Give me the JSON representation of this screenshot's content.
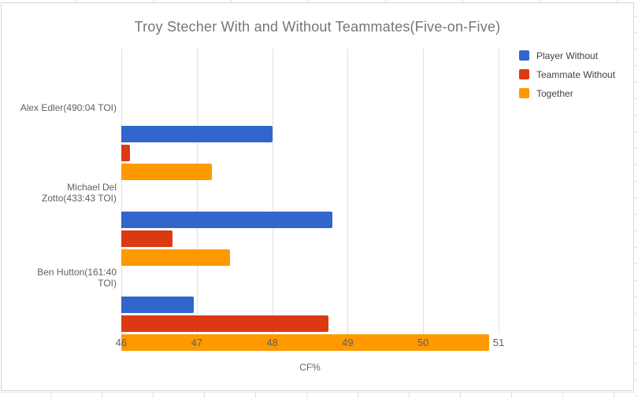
{
  "chart_data": {
    "type": "bar",
    "orientation": "horizontal",
    "title": "Troy Stecher With and Without Teammates(Five-on-Five)",
    "xlabel": "CF%",
    "xlim": [
      46,
      51
    ],
    "x_ticks": [
      "46",
      "47",
      "48",
      "49",
      "50",
      "51"
    ],
    "grid": true,
    "legend_position": "right",
    "categories": [
      "Alex Edler(490:04 TOI)",
      "Michael Del Zotto(433:43 TOI)",
      "Ben Hutton(161:40 TOI)"
    ],
    "category_label_lines": [
      [
        "Alex Edler(490:04 TOI)"
      ],
      [
        "Michael Del",
        "Zotto(433:43 TOI)"
      ],
      [
        "Ben Hutton(161:40",
        "TOI)"
      ]
    ],
    "series": [
      {
        "name": "Player Without",
        "color": "#3366CC",
        "values": [
          48.0,
          48.8,
          46.96
        ]
      },
      {
        "name": "Teammate Without",
        "color": "#DC3912",
        "values": [
          46.12,
          46.68,
          48.75
        ]
      },
      {
        "name": "Together",
        "color": "#FF9900",
        "values": [
          47.2,
          47.44,
          50.87
        ]
      }
    ]
  },
  "colors": {
    "title_text": "#757575",
    "axis_text": "#616161",
    "legend_text": "#424242",
    "gridline": "#e0e0e0",
    "card_border": "#d6d6d6",
    "background": "#ffffff"
  }
}
